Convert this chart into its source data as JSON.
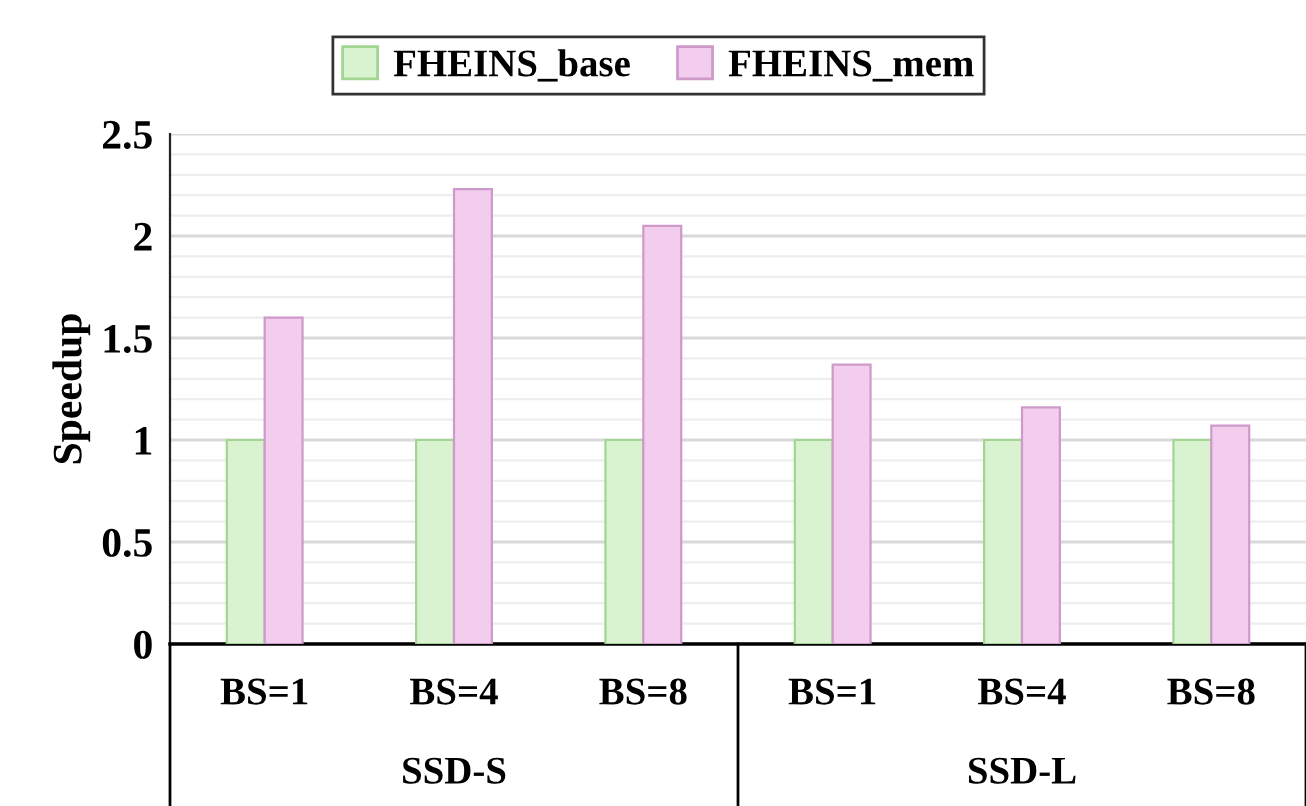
{
  "chart_data": {
    "type": "bar",
    "ylabel": "Speedup",
    "categories": [
      "BS=1",
      "BS=4",
      "BS=8",
      "BS=1",
      "BS=4",
      "BS=8"
    ],
    "series": [
      {
        "name": "FHEINS_base",
        "color": "#d9f2d0",
        "values": [
          1,
          1,
          1,
          1,
          1,
          1
        ]
      },
      {
        "name": "FHEINS_mem",
        "color": "#f2cdee",
        "values": [
          1.6,
          2.23,
          2.05,
          1.37,
          1.16,
          1.07
        ]
      }
    ],
    "annotations": [
      "SSD-S",
      "SSD-L"
    ],
    "ylim": [
      0,
      2.5
    ],
    "yticks": [
      0,
      0.5,
      1,
      1.5,
      2,
      2.5
    ],
    "grid": "y",
    "legend": "top"
  }
}
